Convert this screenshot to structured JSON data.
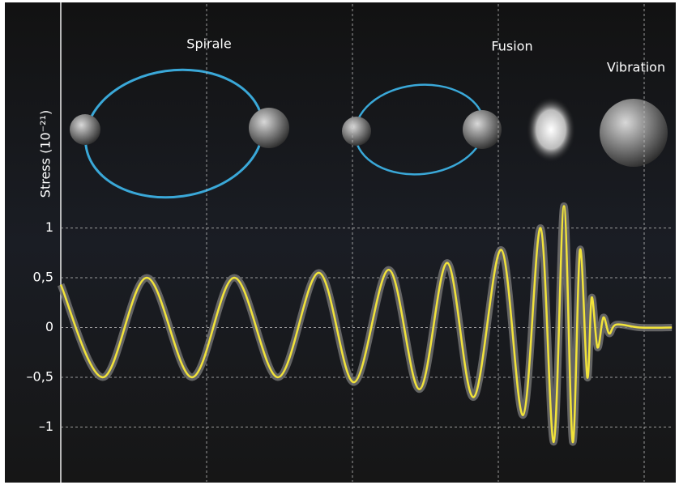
{
  "chart_data": {
    "type": "line",
    "y_label": "Stress (10⁻²¹)",
    "annotations": [
      "Spirale",
      "Fusion",
      "Vibration"
    ],
    "x": [
      0,
      0.29,
      0.59,
      0.9,
      1.19,
      1.49,
      1.77,
      2.01,
      2.25,
      2.46,
      2.65,
      2.83,
      3.02,
      3.17,
      3.29,
      3.38,
      3.45,
      3.51,
      3.56,
      3.61,
      3.64,
      3.68,
      3.72,
      3.76,
      3.81,
      3.97,
      4.19
    ],
    "series": [
      {
        "color": "#f2e33a",
        "values": [
          0.43,
          -0.5,
          0.5,
          -0.5,
          0.5,
          -0.5,
          0.55,
          -0.55,
          0.58,
          -0.62,
          0.65,
          -0.7,
          0.78,
          -0.88,
          1.0,
          -1.15,
          1.22,
          -1.15,
          0.78,
          -0.5,
          0.3,
          -0.2,
          0.1,
          -0.06,
          0.03,
          0,
          0
        ]
      }
    ],
    "xlim": [
      0,
      4.2
    ],
    "xticks": [
      0,
      1,
      2,
      3,
      4
    ],
    "ylim": [
      -1.55,
      3.25
    ],
    "yticks": [
      1,
      {
        "value": 0.5,
        "label": "0,5"
      },
      0,
      {
        "value": -0.5,
        "label": "–0,5"
      },
      {
        "value": -1,
        "label": "–1"
      }
    ],
    "grid": true
  }
}
